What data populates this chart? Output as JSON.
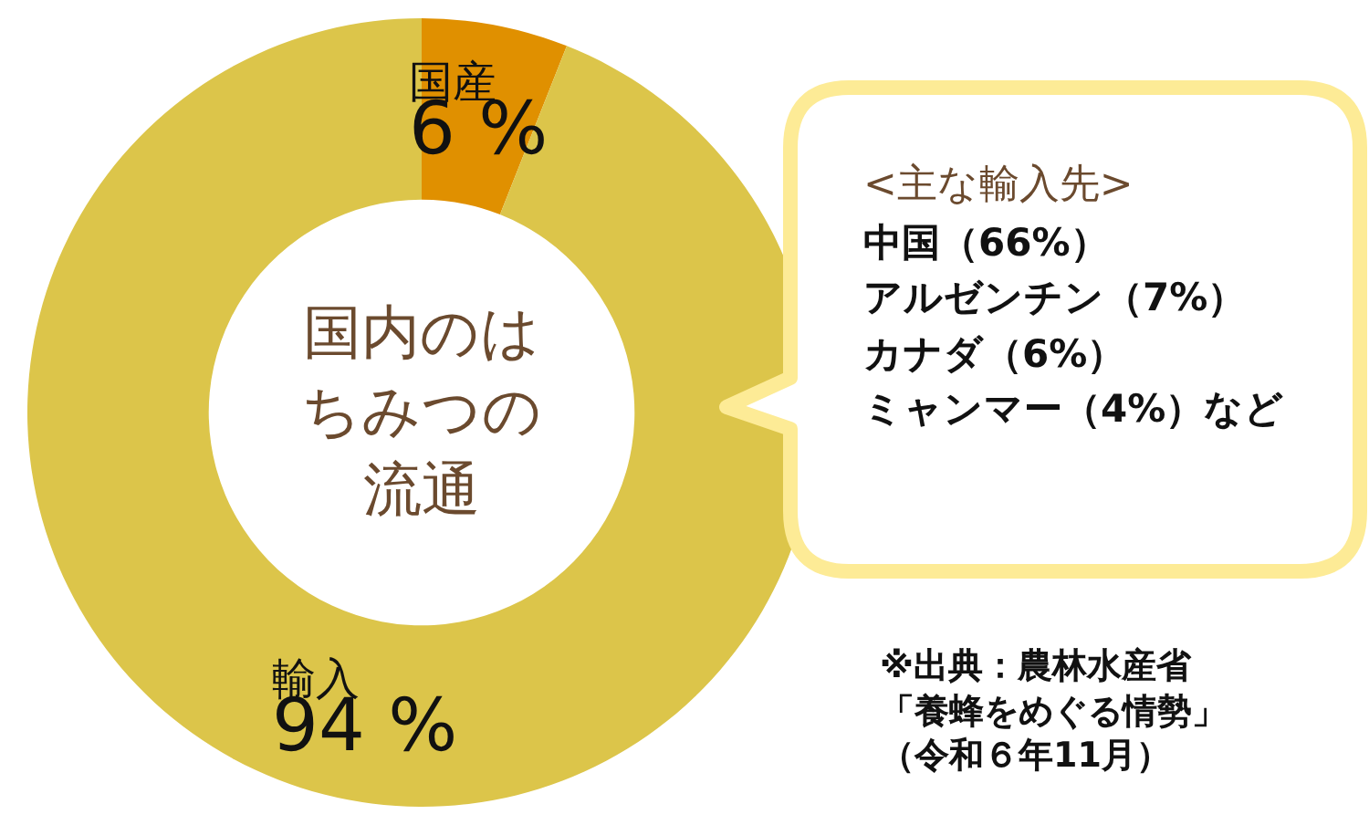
{
  "chart_data": {
    "type": "donut",
    "title": "国内のはちみつの流通",
    "categories": [
      "国産",
      "輸入"
    ],
    "values": [
      6,
      94
    ],
    "colors": [
      "#e09000",
      "#dcc54a"
    ],
    "value_labels": [
      "6 %",
      "94 %"
    ],
    "legend": false,
    "annotations": [
      "<主な輸入先>",
      "中国（66%）",
      "アルゼンチン（7%）",
      "カナダ（6%）",
      "ミャンマー（4%）など",
      "※出典：農林水産省「養蜂をめぐる情勢」（令和６年11月）"
    ]
  }
}
